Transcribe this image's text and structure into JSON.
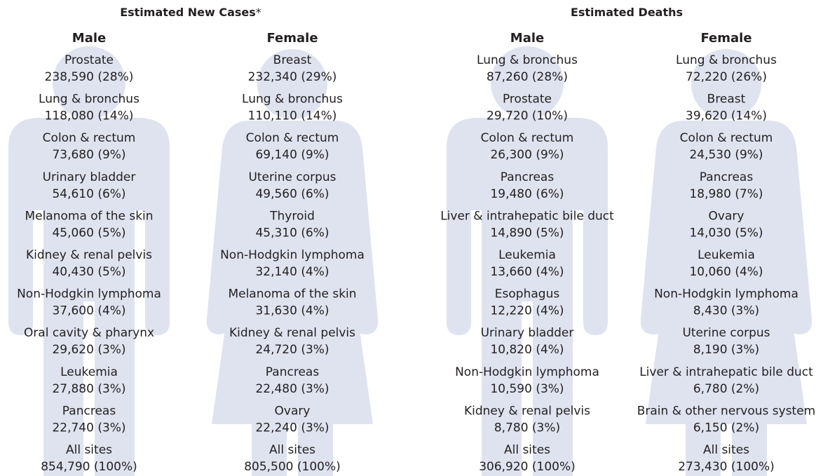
{
  "sections": [
    {
      "title": "Estimated New Cases",
      "note_mark": "*",
      "columns": [
        {
          "heading": "Male",
          "items": [
            {
              "site": "Prostate",
              "value": "238,590 (28%)"
            },
            {
              "site": "Lung & bronchus",
              "value": "118,080 (14%)"
            },
            {
              "site": "Colon & rectum",
              "value": "73,680 (9%)"
            },
            {
              "site": "Urinary bladder",
              "value": "54,610 (6%)"
            },
            {
              "site": "Melanoma of the skin",
              "value": "45,060 (5%)"
            },
            {
              "site": "Kidney & renal pelvis",
              "value": "40,430 (5%)"
            },
            {
              "site": "Non-Hodgkin lymphoma",
              "value": "37,600 (4%)"
            },
            {
              "site": "Oral cavity & pharynx",
              "value": "29,620 (3%)"
            },
            {
              "site": "Leukemia",
              "value": "27,880 (3%)"
            },
            {
              "site": "Pancreas",
              "value": "22,740 (3%)"
            },
            {
              "site": "All sites",
              "value": "854,790 (100%)"
            }
          ]
        },
        {
          "heading": "Female",
          "items": [
            {
              "site": "Breast",
              "value": "232,340 (29%)"
            },
            {
              "site": "Lung & bronchus",
              "value": "110,110 (14%)"
            },
            {
              "site": "Colon & rectum",
              "value": "69,140 (9%)"
            },
            {
              "site": "Uterine corpus",
              "value": "49,560 (6%)"
            },
            {
              "site": "Thyroid",
              "value": "45,310 (6%)"
            },
            {
              "site": "Non-Hodgkin lymphoma",
              "value": "32,140 (4%)"
            },
            {
              "site": "Melanoma of the skin",
              "value": "31,630 (4%)"
            },
            {
              "site": "Kidney & renal pelvis",
              "value": "24,720 (3%)"
            },
            {
              "site": "Pancreas",
              "value": "22,480 (3%)"
            },
            {
              "site": "Ovary",
              "value": "22,240 (3%)"
            },
            {
              "site": "All sites",
              "value": "805,500 (100%)"
            }
          ]
        }
      ]
    },
    {
      "title": "Estimated Deaths",
      "columns": [
        {
          "heading": "Male",
          "items": [
            {
              "site": "Lung & bronchus",
              "value": "87,260 (28%)"
            },
            {
              "site": "Prostate",
              "value": "29,720 (10%)"
            },
            {
              "site": "Colon & rectum",
              "value": "26,300 (9%)"
            },
            {
              "site": "Pancreas",
              "value": "19,480 (6%)"
            },
            {
              "site": "Liver & intrahepatic bile duct",
              "value": "14,890 (5%)"
            },
            {
              "site": "Leukemia",
              "value": "13,660 (4%)"
            },
            {
              "site": "Esophagus",
              "value": "12,220 (4%)"
            },
            {
              "site": "Urinary bladder",
              "value": "10,820 (4%)"
            },
            {
              "site": "Non-Hodgkin lymphoma",
              "value": "10,590 (3%)"
            },
            {
              "site": "Kidney & renal pelvis",
              "value": "8,780 (3%)"
            },
            {
              "site": "All sites",
              "value": "306,920 (100%)"
            }
          ]
        },
        {
          "heading": "Female",
          "items": [
            {
              "site": "Lung & bronchus",
              "value": "72,220 (26%)"
            },
            {
              "site": "Breast",
              "value": "39,620 (14%)"
            },
            {
              "site": "Colon & rectum",
              "value": "24,530 (9%)"
            },
            {
              "site": "Pancreas",
              "value": "18,980 (7%)"
            },
            {
              "site": "Ovary",
              "value": "14,030 (5%)"
            },
            {
              "site": "Leukemia",
              "value": "10,060 (4%)"
            },
            {
              "site": "Non-Hodgkin lymphoma",
              "value": "8,430 (3%)"
            },
            {
              "site": "Uterine corpus",
              "value": "8,190 (3%)"
            },
            {
              "site": "Liver & intrahepatic bile duct",
              "value": "6,780 (2%)"
            },
            {
              "site": "Brain & other nervous system",
              "value": "6,150 (2%)"
            },
            {
              "site": "All sites",
              "value": "273,430 (100%)"
            }
          ]
        }
      ]
    }
  ]
}
